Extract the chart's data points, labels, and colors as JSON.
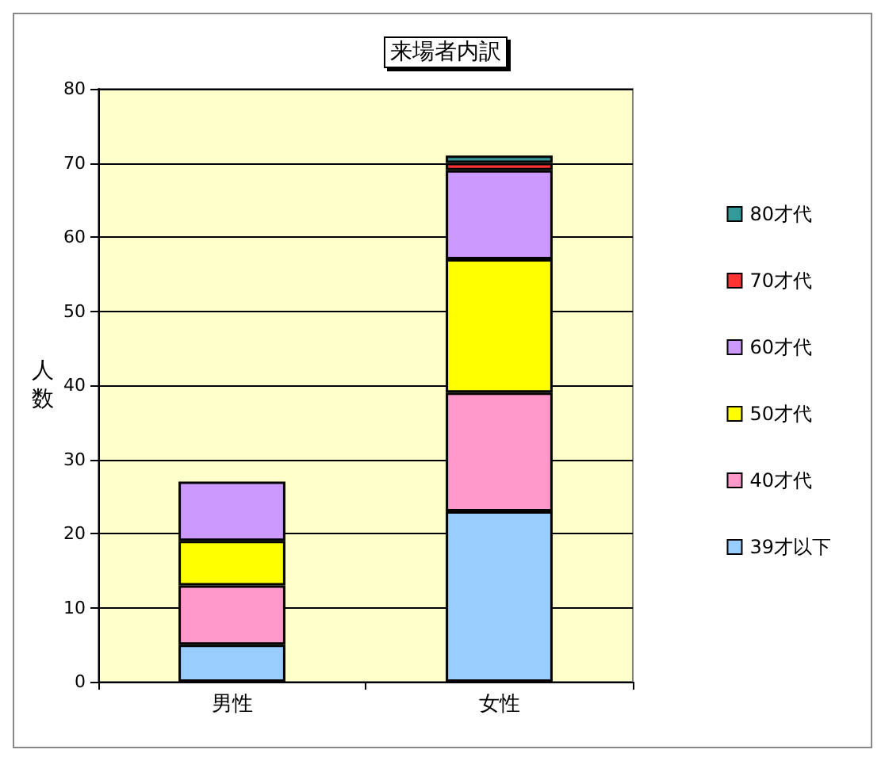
{
  "chart_data": {
    "type": "bar",
    "title": "来場者内訳",
    "ylabel": "人数",
    "categories": [
      "男性",
      "女性"
    ],
    "stacked": true,
    "series": [
      {
        "name": "39才以下",
        "color": "#99ccff",
        "values": [
          5,
          23
        ]
      },
      {
        "name": "40才代",
        "color": "#ff99cc",
        "values": [
          8,
          16
        ]
      },
      {
        "name": "50才代",
        "color": "#ffff00",
        "values": [
          6,
          18
        ]
      },
      {
        "name": "60才代",
        "color": "#cc99ff",
        "values": [
          8,
          12
        ]
      },
      {
        "name": "70才代",
        "color": "#ff3333",
        "values": [
          null,
          1
        ]
      },
      {
        "name": "80才代",
        "color": "#339999",
        "values": [
          null,
          1
        ]
      }
    ],
    "ylim": [
      0,
      80
    ],
    "yticks": [
      0,
      10,
      20,
      30,
      40,
      50,
      60,
      70,
      80
    ],
    "grid": "y",
    "legend": "right"
  }
}
